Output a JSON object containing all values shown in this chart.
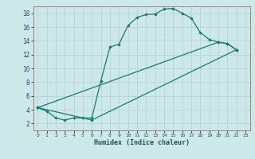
{
  "xlabel": "Humidex (Indice chaleur)",
  "bg_color": "#cce8e8",
  "grid_color": "#b8d8d8",
  "line_color": "#1a7a6e",
  "xlim": [
    -0.5,
    23.5
  ],
  "ylim": [
    1,
    19
  ],
  "yticks": [
    2,
    4,
    6,
    8,
    10,
    12,
    14,
    16,
    18
  ],
  "xticks": [
    0,
    1,
    2,
    3,
    4,
    5,
    6,
    7,
    8,
    9,
    10,
    11,
    12,
    13,
    14,
    15,
    16,
    17,
    18,
    19,
    20,
    21,
    22,
    23
  ],
  "curve_x": [
    0,
    1,
    2,
    3,
    4,
    5,
    6,
    7,
    8,
    9,
    10,
    11,
    12,
    13,
    14,
    15,
    16,
    17,
    18,
    19,
    20,
    21,
    22
  ],
  "curve_y": [
    4.3,
    3.8,
    2.8,
    2.5,
    2.8,
    2.8,
    2.8,
    8.2,
    13.1,
    13.5,
    16.2,
    17.4,
    17.8,
    17.9,
    18.6,
    18.7,
    18.0,
    17.3,
    15.2,
    14.2,
    13.8,
    13.6,
    12.7
  ],
  "line2_x": [
    0,
    20,
    21,
    22
  ],
  "line2_y": [
    4.3,
    13.8,
    13.6,
    12.7
  ],
  "line3_x": [
    0,
    6,
    22
  ],
  "line3_y": [
    4.3,
    2.5,
    12.7
  ]
}
